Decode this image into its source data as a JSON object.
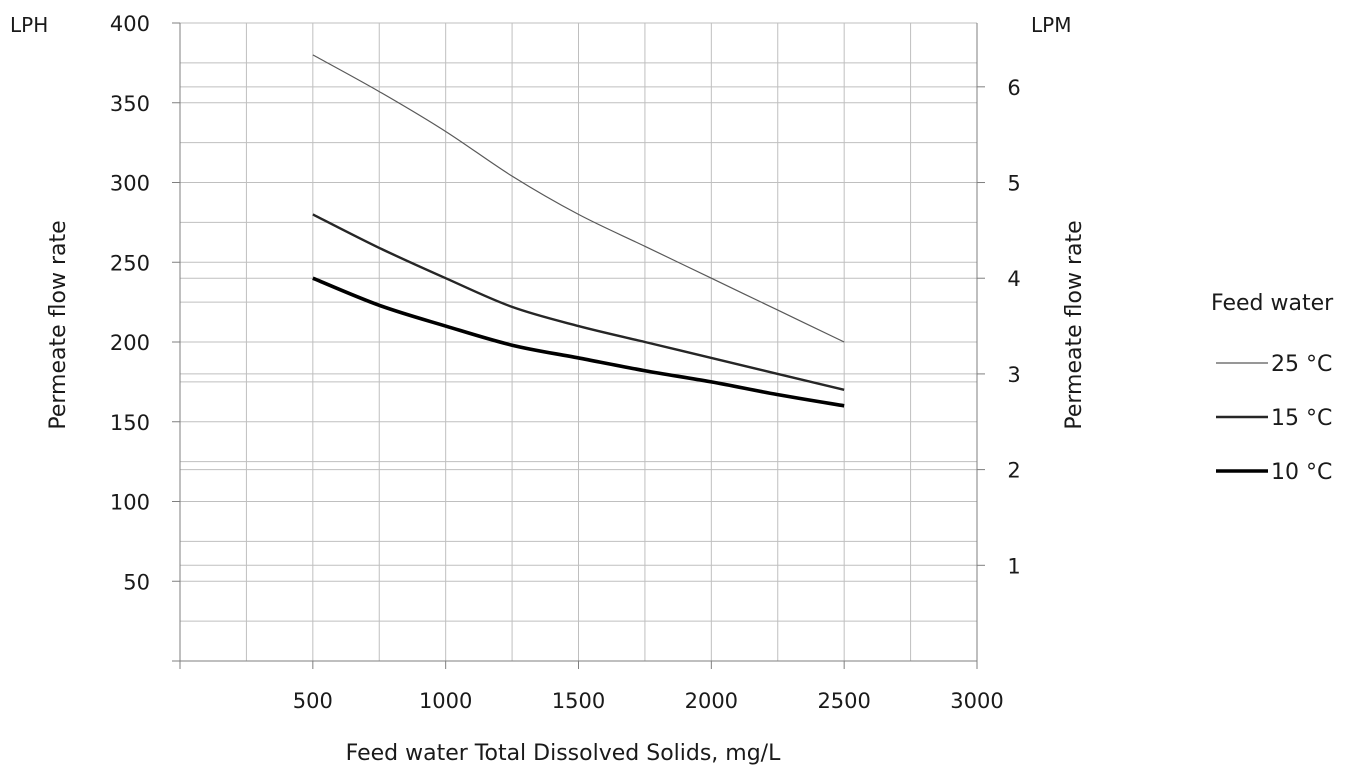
{
  "chart_data": {
    "type": "line",
    "title": "",
    "xlabel": "Feed water Total Dissolved Solids, mg/L",
    "ylabel": "Permeate flow rate",
    "ylabel_right": "Permeate flow rate",
    "y_unit_left": "LPH",
    "y_unit_right": "LPM",
    "xlim": [
      0,
      3000
    ],
    "ylim": [
      0,
      400
    ],
    "ylim_right": [
      0,
      6.667
    ],
    "x_ticks": [
      "500",
      "1000",
      "1500",
      "2000",
      "2500",
      "3000"
    ],
    "y_ticks_left": [
      "50",
      "100",
      "150",
      "200",
      "250",
      "300",
      "350",
      "400"
    ],
    "y_ticks_right": [
      "1",
      "2",
      "3",
      "4",
      "5",
      "6"
    ],
    "grid": true,
    "legend_title": "Feed water",
    "legend_position": "right",
    "x": [
      500,
      750,
      1000,
      1250,
      1500,
      1750,
      2000,
      2250,
      2500
    ],
    "series": [
      {
        "name": "25 °C",
        "values": [
          380,
          357,
          332,
          304,
          280,
          260,
          240,
          220,
          200
        ],
        "color": "#595959"
      },
      {
        "name": "15 °C",
        "values": [
          280,
          259,
          240,
          222,
          210,
          200,
          190,
          180,
          170
        ],
        "color": "#262626"
      },
      {
        "name": "10 °C",
        "values": [
          240,
          223,
          210,
          198,
          190,
          182,
          175,
          167,
          160
        ],
        "color": "#000000"
      }
    ]
  }
}
